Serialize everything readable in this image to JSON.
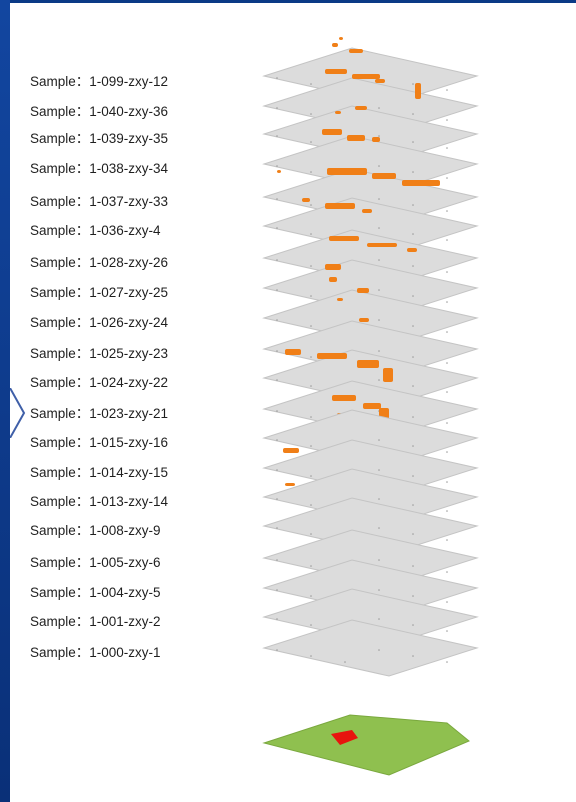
{
  "samples": [
    "Sample：1-099-zxy-12",
    "Sample：1-040-zxy-36",
    "Sample：1-039-zxy-35",
    "Sample：1-038-zxy-34",
    "Sample：1-037-zxy-33",
    "Sample：1-036-zxy-4",
    "Sample：1-028-zxy-26",
    "Sample：1-027-zxy-25",
    "Sample：1-026-zxy-24",
    "Sample：1-025-zxy-23",
    "Sample：1-024-zxy-22",
    "Sample：1-023-zxy-21",
    "Sample：1-015-zxy-16",
    "Sample：1-014-zxy-15",
    "Sample：1-013-zxy-14",
    "Sample：1-008-zxy-9",
    "Sample：1-005-zxy-6",
    "Sample：1-004-zxy-5",
    "Sample：1-001-zxy-2",
    "Sample：1-000-zxy-1"
  ],
  "colors": {
    "background_frame": "#0b3a86",
    "layer_fill": "#dcdcdc",
    "layer_edge": "#c4c4c4",
    "anomaly": "#f07f17",
    "base_layer": "#8fc04f",
    "base_marker": "#e8140e"
  }
}
